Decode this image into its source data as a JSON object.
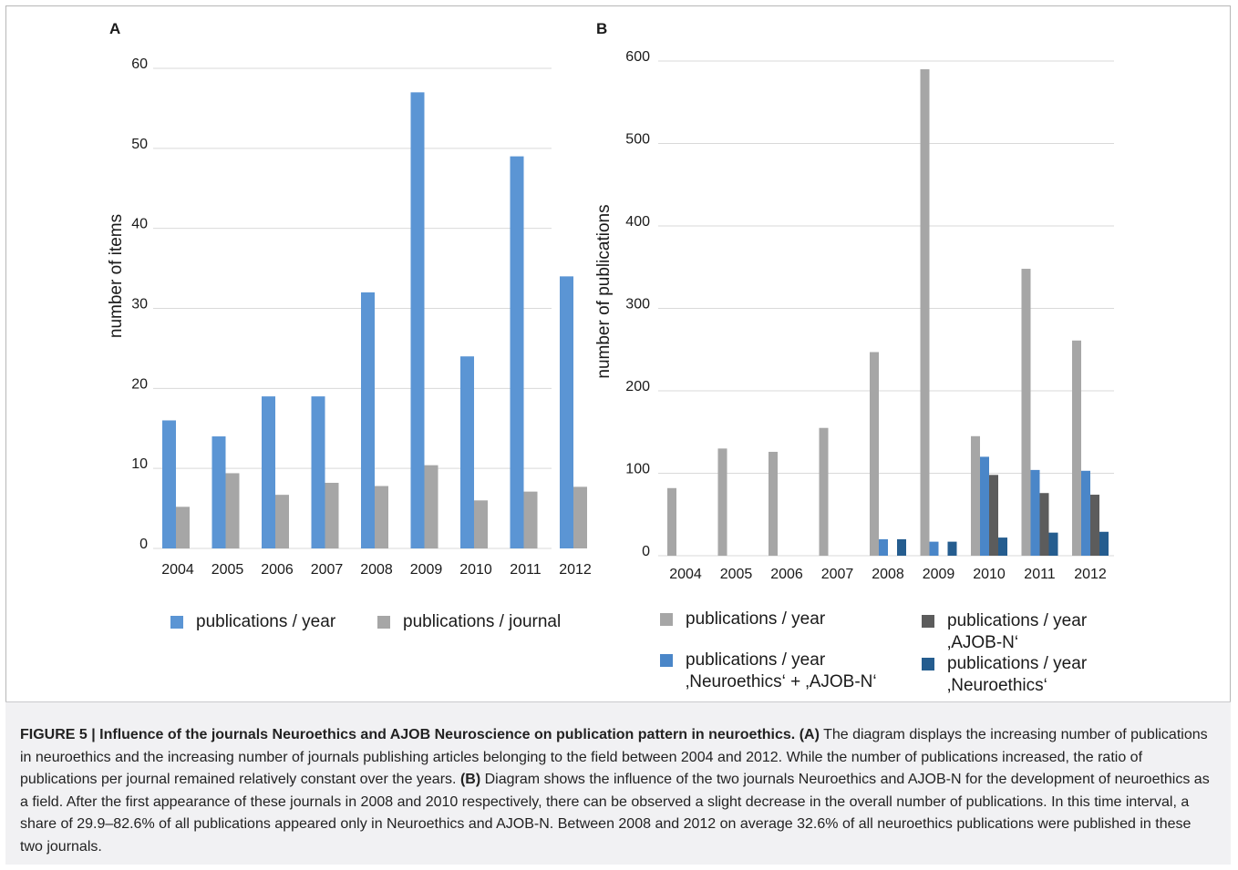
{
  "panel_a": {
    "letter": "A",
    "legend": [
      {
        "label": "publications / year",
        "color": "#5b95d4"
      },
      {
        "label": "publications / journal",
        "color": "#a6a6a6"
      }
    ]
  },
  "panel_b": {
    "letter": "B",
    "legend": [
      {
        "line1": "publications / year",
        "line2": "",
        "color": "#a6a6a6"
      },
      {
        "line1": "publications / year",
        "line2": "‚Neuroethics‘ + ‚AJOB-N‘",
        "color": "#4a86c8"
      },
      {
        "line1": "publications / year",
        "line2": "‚AJOB-N‘",
        "color": "#5c5c5c"
      },
      {
        "line1": "publications / year",
        "line2": "‚Neuroethics‘",
        "color": "#255d8f"
      }
    ]
  },
  "caption": {
    "figure_label": "FIGURE 5 | Influence of the journals Neuroethics and AJOB Neuroscience on publication pattern in neuroethics.",
    "part_a_label": "(A)",
    "part_a_text": "The diagram displays the increasing number of publications in neuroethics and the increasing number of journals publishing articles belonging to the field between 2004 and 2012. While the number of publications increased, the ratio of publications per journal remained relatively constant over the years.",
    "part_b_label": "(B)",
    "part_b_text": "Diagram shows the influence of the two journals Neuroethics and AJOB-N for the development of neuroethics as a field. After the first appearance of these journals in 2008 and 2010 respectively, there can be observed a slight decrease in the overall number of publications. In this time interval, a share of 29.9–82.6% of all publications appeared only in Neuroethics and AJOB-N. Between 2008 and 2012 on average 32.6% of all neuroethics publications were published in these two journals."
  },
  "chart_data": [
    {
      "type": "bar",
      "title": "",
      "xlabel": "",
      "ylabel": "number of items",
      "ylim": [
        0,
        60
      ],
      "yticks": [
        0,
        10,
        20,
        30,
        40,
        50,
        60
      ],
      "grid": true,
      "legend_position": "bottom",
      "categories": [
        "2004",
        "2005",
        "2006",
        "2007",
        "2008",
        "2009",
        "2010",
        "2011",
        "2012"
      ],
      "series": [
        {
          "name": "publications / year",
          "color": "#5b95d4",
          "values": [
            16,
            14,
            19,
            19,
            32,
            57,
            24,
            49,
            34
          ]
        },
        {
          "name": "publications / journal",
          "color": "#a6a6a6",
          "values": [
            5.2,
            9.4,
            6.7,
            8.2,
            7.8,
            10.4,
            6.0,
            7.1,
            7.7
          ]
        }
      ]
    },
    {
      "type": "bar",
      "title": "",
      "xlabel": "",
      "ylabel": "number of publications",
      "ylim": [
        0,
        600
      ],
      "yticks": [
        0,
        100,
        200,
        300,
        400,
        500,
        600
      ],
      "grid": true,
      "legend_position": "bottom",
      "categories": [
        "2004",
        "2005",
        "2006",
        "2007",
        "2008",
        "2009",
        "2010",
        "2011",
        "2012"
      ],
      "series": [
        {
          "name": "publications / year",
          "color": "#a6a6a6",
          "values": [
            82,
            130,
            126,
            155,
            247,
            590,
            145,
            348,
            261
          ]
        },
        {
          "name": "publications / year ‚Neuroethics‘ + ‚AJOB-N‘",
          "color": "#4a86c8",
          "values": [
            0,
            0,
            0,
            0,
            20,
            17,
            120,
            104,
            103
          ]
        },
        {
          "name": "publications / year ‚AJOB-N‘",
          "color": "#5c5c5c",
          "values": [
            0,
            0,
            0,
            0,
            0,
            0,
            98,
            76,
            74
          ]
        },
        {
          "name": "publications / year ‚Neuroethics‘",
          "color": "#255d8f",
          "values": [
            0,
            0,
            0,
            0,
            20,
            17,
            22,
            28,
            29
          ]
        }
      ]
    }
  ]
}
